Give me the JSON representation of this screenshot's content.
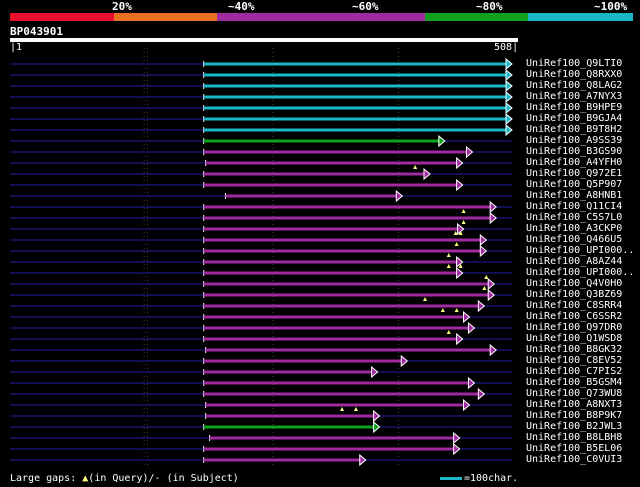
{
  "legend": {
    "segments": [
      {
        "color": "#e8112d"
      },
      {
        "color": "#e87020"
      },
      {
        "color": "#a02aa0"
      },
      {
        "color": "#a02aa0"
      },
      {
        "color": "#10a020"
      },
      {
        "color": "#18b8c8"
      }
    ],
    "labels": [
      "20%",
      "~40%",
      "~60%",
      "~80%",
      "~100%"
    ]
  },
  "query": {
    "id": "BP043901",
    "start": "1",
    "end": "508",
    "length": 508
  },
  "colors": {
    "cyan": "#18b8c8",
    "green": "#10a020",
    "purple": "#a02aa0",
    "faint": "#101050"
  },
  "hits": [
    {
      "name": "UniRef100_Q9LTI0",
      "start": 196,
      "end": 508,
      "color": "cyan",
      "gaps": []
    },
    {
      "name": "UniRef100_Q8RXX0",
      "start": 196,
      "end": 508,
      "color": "cyan",
      "gaps": []
    },
    {
      "name": "UniRef100_Q8LAG2",
      "start": 196,
      "end": 508,
      "color": "cyan",
      "gaps": []
    },
    {
      "name": "UniRef100_A7NYX3",
      "start": 196,
      "end": 508,
      "color": "cyan",
      "gaps": []
    },
    {
      "name": "UniRef100_B9HPE9",
      "start": 196,
      "end": 508,
      "color": "cyan",
      "gaps": []
    },
    {
      "name": "UniRef100_B9GJA4",
      "start": 196,
      "end": 508,
      "color": "cyan",
      "gaps": []
    },
    {
      "name": "UniRef100_B9T8H2",
      "start": 196,
      "end": 508,
      "color": "cyan",
      "gaps": []
    },
    {
      "name": "UniRef100_A9SS39",
      "start": 196,
      "end": 440,
      "color": "green",
      "gaps": []
    },
    {
      "name": "UniRef100_B3GS90",
      "start": 196,
      "end": 468,
      "color": "purple",
      "gaps": []
    },
    {
      "name": "UniRef100_A4YFH0",
      "start": 198,
      "end": 458,
      "color": "purple",
      "gaps": []
    },
    {
      "name": "UniRef100_Q972E1",
      "start": 196,
      "end": 425,
      "color": "purple",
      "gaps": [
        410
      ]
    },
    {
      "name": "UniRef100_Q5P907",
      "start": 196,
      "end": 458,
      "color": "purple",
      "gaps": []
    },
    {
      "name": "UniRef100_A8HNB1",
      "start": 218,
      "end": 397,
      "color": "purple",
      "gaps": []
    },
    {
      "name": "UniRef100_Q11CI4",
      "start": 196,
      "end": 492,
      "color": "purple",
      "gaps": []
    },
    {
      "name": "UniRef100_C5S7L0",
      "start": 196,
      "end": 492,
      "color": "purple",
      "gaps": [
        459
      ]
    },
    {
      "name": "UniRef100_A3CKP0",
      "start": 196,
      "end": 459,
      "color": "purple",
      "gaps": [
        459
      ]
    },
    {
      "name": "UniRef100_Q466U5",
      "start": 196,
      "end": 482,
      "color": "purple",
      "gaps": [
        451,
        456
      ]
    },
    {
      "name": "UniRef100_UPI000..",
      "start": 196,
      "end": 482,
      "color": "purple",
      "gaps": [
        452
      ]
    },
    {
      "name": "UniRef100_A8AZ44",
      "start": 196,
      "end": 458,
      "color": "purple",
      "gaps": [
        444
      ]
    },
    {
      "name": "UniRef100_UPI000..",
      "start": 196,
      "end": 458,
      "color": "purple",
      "gaps": [
        444,
        456
      ]
    },
    {
      "name": "UniRef100_Q4V0H0",
      "start": 196,
      "end": 490,
      "color": "purple",
      "gaps": [
        482
      ]
    },
    {
      "name": "UniRef100_Q3BZ69",
      "start": 196,
      "end": 490,
      "color": "purple",
      "gaps": [
        480
      ]
    },
    {
      "name": "UniRef100_C8SRR4",
      "start": 196,
      "end": 480,
      "color": "purple",
      "gaps": [
        420
      ]
    },
    {
      "name": "UniRef100_C6SSR2",
      "start": 196,
      "end": 465,
      "color": "purple",
      "gaps": [
        438,
        452
      ]
    },
    {
      "name": "UniRef100_Q97DR0",
      "start": 196,
      "end": 470,
      "color": "purple",
      "gaps": []
    },
    {
      "name": "UniRef100_Q1WSD8",
      "start": 196,
      "end": 458,
      "color": "purple",
      "gaps": [
        444
      ]
    },
    {
      "name": "UniRef100_B8GK32",
      "start": 198,
      "end": 492,
      "color": "purple",
      "gaps": []
    },
    {
      "name": "UniRef100_C8EV52",
      "start": 196,
      "end": 402,
      "color": "purple",
      "gaps": []
    },
    {
      "name": "UniRef100_C7PIS2",
      "start": 196,
      "end": 372,
      "color": "purple",
      "gaps": []
    },
    {
      "name": "UniRef100_B5GSM4",
      "start": 196,
      "end": 470,
      "color": "purple",
      "gaps": []
    },
    {
      "name": "UniRef100_Q73WU8",
      "start": 196,
      "end": 480,
      "color": "purple",
      "gaps": []
    },
    {
      "name": "UniRef100_A8NXT3",
      "start": 198,
      "end": 465,
      "color": "purple",
      "gaps": []
    },
    {
      "name": "UniRef100_B8P9K7",
      "start": 198,
      "end": 374,
      "color": "purple",
      "gaps": [
        336,
        350
      ]
    },
    {
      "name": "UniRef100_B2JWL3",
      "start": 196,
      "end": 374,
      "color": "green",
      "gaps": []
    },
    {
      "name": "UniRef100_B8LBH8",
      "start": 202,
      "end": 455,
      "color": "purple",
      "gaps": []
    },
    {
      "name": "UniRef100_B5EL06",
      "start": 196,
      "end": 455,
      "color": "purple",
      "gaps": []
    },
    {
      "name": "UniRef100_C0VUI3",
      "start": 196,
      "end": 360,
      "color": "purple",
      "gaps": []
    }
  ],
  "footer": {
    "gaps_label": "Large gaps:",
    "in_query": "(in Query)/",
    "in_subject": "- (in Subject)",
    "scale": "=100char."
  }
}
